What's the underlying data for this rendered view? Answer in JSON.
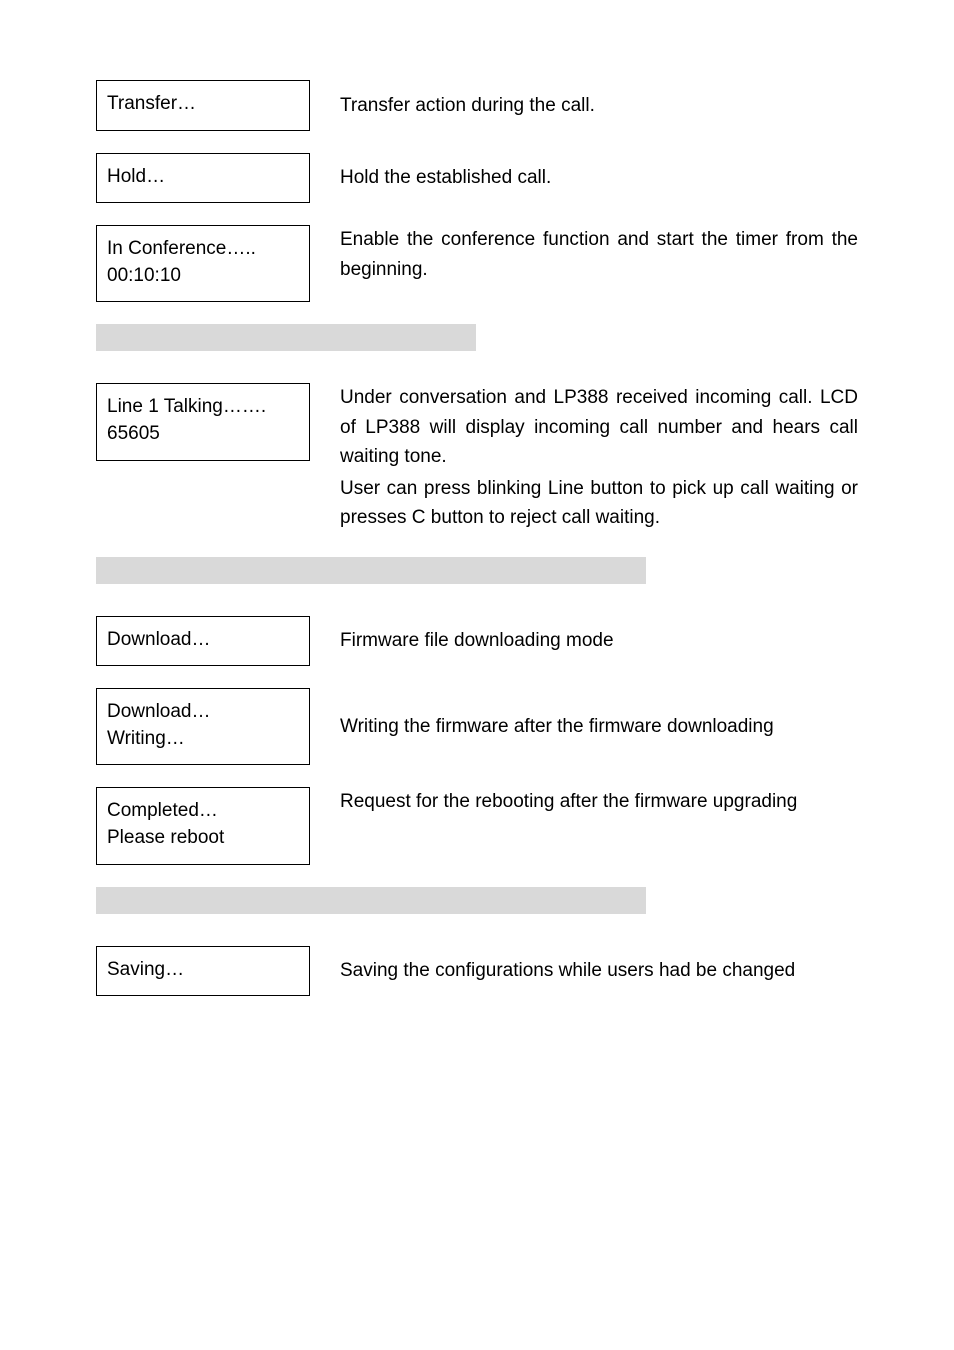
{
  "section1": {
    "items": [
      {
        "box_line1": "Transfer…",
        "box_line2": "",
        "desc": "Transfer action during the call."
      },
      {
        "box_line1": "Hold…",
        "box_line2": "",
        "desc": "Hold the established call."
      },
      {
        "box_line1": "In Conference…..",
        "box_line2": "00:10:10",
        "desc": "Enable the conference function and start the timer from the beginning."
      }
    ]
  },
  "section2": {
    "items": [
      {
        "box_line1": "Line 1 Talking…….",
        "box_line2": "65605",
        "desc_p1": "Under conversation and LP388 received incoming call. LCD of LP388 will display incoming call number and hears call waiting tone.",
        "desc_p2": "User can press blinking Line button to pick up call waiting or presses C button to reject call waiting."
      }
    ]
  },
  "section3": {
    "items": [
      {
        "box_line1": "Download…",
        "box_line2": "",
        "desc": "Firmware file downloading mode"
      },
      {
        "box_line1": "Download…",
        "box_line2": "Writing…",
        "desc": "Writing the firmware after the firmware downloading"
      },
      {
        "box_line1": "Completed…",
        "box_line2": "Please reboot",
        "desc": "Request for the rebooting after the firmware upgrading"
      }
    ]
  },
  "section4": {
    "items": [
      {
        "box_line1": "Saving…",
        "box_line2": "",
        "desc": "Saving the configurations while users had be changed"
      }
    ]
  }
}
